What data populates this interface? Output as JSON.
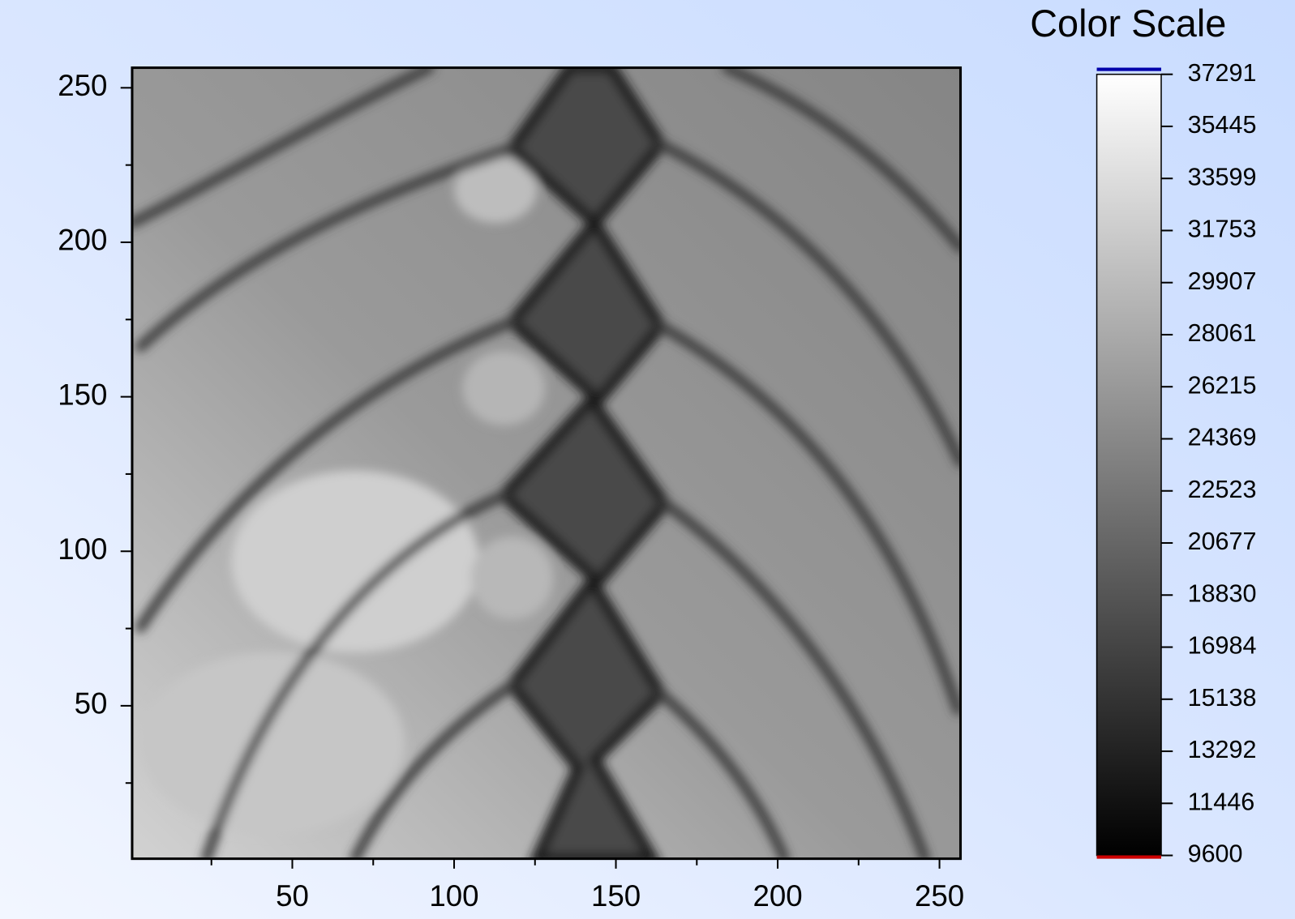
{
  "chart_data": {
    "type": "heatmap",
    "xlim": [
      0.5,
      256.5
    ],
    "ylim": [
      0.5,
      256.5
    ],
    "xticks": [
      50,
      100,
      150,
      200,
      250
    ],
    "yticks": [
      50,
      100,
      150,
      200,
      250
    ],
    "xminorticks": [
      25,
      75,
      125,
      175,
      225
    ],
    "yminorticks": [
      25,
      75,
      125,
      175,
      225
    ],
    "colorbar": {
      "title": "Color Scale",
      "zlim": [
        9600,
        37291
      ],
      "ticks": [
        37291,
        35445,
        33599,
        31753,
        29907,
        28061,
        26215,
        24369,
        22523,
        20677,
        18830,
        16984,
        15138,
        13292,
        11446,
        9600
      ],
      "low_color": "#000000",
      "high_color": "#ffffff",
      "above_color": "#0000aa",
      "below_color": "#cc0000"
    }
  }
}
